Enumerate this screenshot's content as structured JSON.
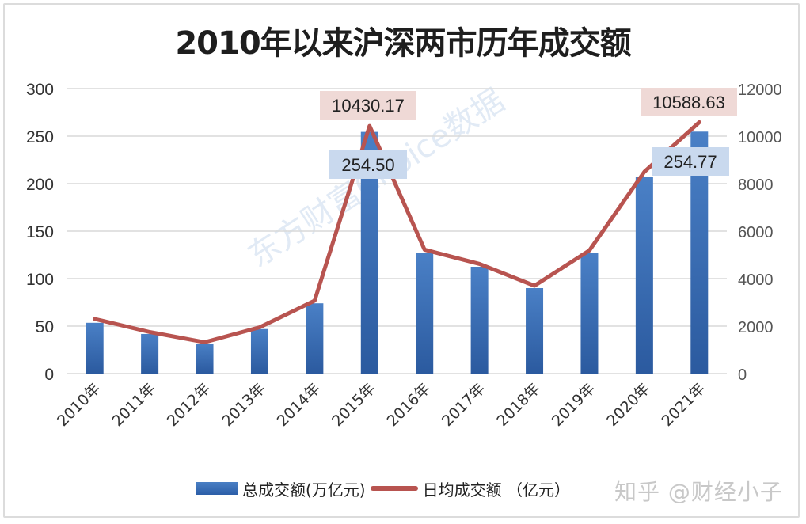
{
  "chart_data": {
    "type": "bar+line",
    "title": "2010年以来沪深两市历年成交额",
    "categories": [
      "2010年",
      "2011年",
      "2012年",
      "2013年",
      "2014年",
      "2015年",
      "2016年",
      "2017年",
      "2018年",
      "2019年",
      "2020年",
      "2021年"
    ],
    "series": [
      {
        "name": "总成交额(万亿元)",
        "type": "bar",
        "axis": "left",
        "color": "#3a6db5",
        "values": [
          53.5,
          41.7,
          31.5,
          46.9,
          74.0,
          254.5,
          126.7,
          112.5,
          90.0,
          127.4,
          206.8,
          254.77
        ]
      },
      {
        "name": "日均成交额 （亿元）",
        "type": "line",
        "axis": "right",
        "color": "#b85450",
        "values": [
          2300,
          1750,
          1320,
          1950,
          3070,
          10430.17,
          5220,
          4620,
          3700,
          5190,
          8500,
          10588.63
        ]
      }
    ],
    "data_labels": [
      {
        "category": "2015年",
        "series": "总成交额(万亿元)",
        "text": "254.50"
      },
      {
        "category": "2015年",
        "series": "日均成交额 （亿元）",
        "text": "10430.17"
      },
      {
        "category": "2021年",
        "series": "总成交额(万亿元)",
        "text": "254.77"
      },
      {
        "category": "2021年",
        "series": "日均成交额 （亿元）",
        "text": "10588.63"
      }
    ],
    "ylim_left": [
      0,
      300
    ],
    "yticks_left": [
      "0",
      "50",
      "100",
      "150",
      "200",
      "250",
      "300"
    ],
    "ylim_right": [
      0,
      12000
    ],
    "yticks_right": [
      "0",
      "2000",
      "4000",
      "6000",
      "8000",
      "10000",
      "12000"
    ],
    "grid": true,
    "legend_position": "bottom",
    "xlabel": "",
    "ylabel": ""
  },
  "legend": {
    "bar_label": "总成交额(万亿元)",
    "line_label": "日均成交额 （亿元）"
  },
  "watermarks": {
    "source": "知乎 @财经小子",
    "diagonal": "东方财富Choice数据"
  },
  "colors": {
    "bar": "#3a6db5",
    "line": "#b85450",
    "bar_label_bg": "#c9d9ee",
    "line_label_bg": "#efd9d6",
    "grid": "#d9d9d9"
  }
}
